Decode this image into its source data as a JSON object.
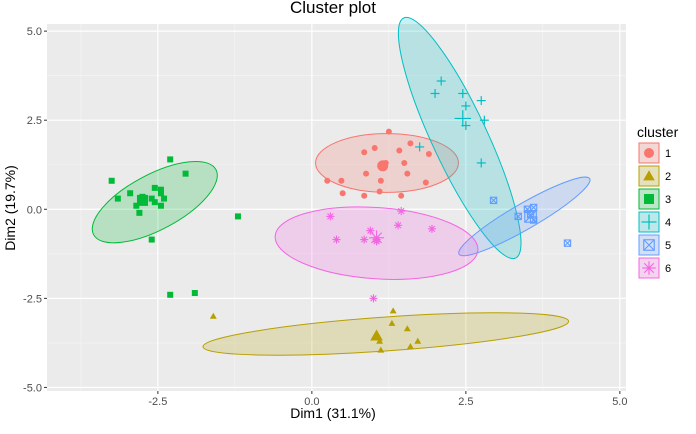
{
  "chart_data": {
    "type": "scatter",
    "title": "Cluster plot",
    "xlabel": "Dim1 (31.1%)",
    "ylabel": "Dim2 (19.7%)",
    "xlim": [
      -4.3,
      5.1
    ],
    "ylim": [
      -5.1,
      5.2
    ],
    "xticks": [
      -2.5,
      0.0,
      2.5,
      5.0
    ],
    "xtick_labels": [
      "-2.5",
      "0.0",
      "2.5",
      "5.0"
    ],
    "yticks": [
      -5.0,
      -2.5,
      0.0,
      2.5,
      5.0
    ],
    "ytick_labels": [
      "-5.0",
      "-2.5",
      "0.0",
      "2.5",
      "5.0"
    ],
    "grid": true,
    "legend": {
      "title": "cluster",
      "position": "right"
    },
    "series": [
      {
        "name": "1",
        "color": "#F8766D",
        "marker": "circle",
        "centroid": [
          1.15,
          1.22
        ],
        "ellipse": {
          "cx": 1.22,
          "cy": 1.3,
          "rx": 2.32,
          "ry": 1.65,
          "angle": 0
        },
        "points": [
          [
            1.25,
            2.18
          ],
          [
            1.6,
            1.85
          ],
          [
            1.02,
            1.72
          ],
          [
            1.42,
            1.65
          ],
          [
            0.85,
            1.6
          ],
          [
            1.9,
            1.55
          ],
          [
            1.5,
            1.3
          ],
          [
            1.2,
            1.3
          ],
          [
            0.88,
            1.0
          ],
          [
            1.55,
            1.0
          ],
          [
            0.25,
            0.8
          ],
          [
            0.48,
            0.8
          ],
          [
            1.12,
            0.8
          ],
          [
            1.85,
            0.75
          ],
          [
            1.1,
            0.5
          ],
          [
            0.5,
            0.45
          ],
          [
            0.85,
            0.38
          ],
          [
            1.45,
            0.38
          ]
        ]
      },
      {
        "name": "2",
        "color": "#B79F00",
        "marker": "triangle",
        "centroid": [
          1.05,
          -3.55
        ],
        "ellipse": {
          "cx": 1.2,
          "cy": -3.5,
          "rx": 5.95,
          "ry": 0.95,
          "angle": -4
        },
        "points": [
          [
            -1.6,
            -3.0
          ],
          [
            1.32,
            -2.85
          ],
          [
            1.55,
            -3.35
          ],
          [
            1.6,
            -3.85
          ],
          [
            1.72,
            -3.7
          ],
          [
            1.1,
            -3.7
          ],
          [
            1.12,
            -3.95
          ],
          [
            1.3,
            -3.2
          ]
        ]
      },
      {
        "name": "3",
        "color": "#00BA38",
        "marker": "square",
        "centroid": [
          -2.75,
          0.25
        ],
        "ellipse": {
          "cx": -2.55,
          "cy": 0.2,
          "rx": 2.25,
          "ry": 1.55,
          "angle": -28
        },
        "points": [
          [
            -3.25,
            0.8
          ],
          [
            -2.95,
            0.45
          ],
          [
            -3.15,
            0.3
          ],
          [
            -2.55,
            0.6
          ],
          [
            -2.45,
            0.55
          ],
          [
            -2.3,
            1.4
          ],
          [
            -2.45,
            0.45
          ],
          [
            -2.4,
            0.3
          ],
          [
            -2.6,
            0.3
          ],
          [
            -2.55,
            0.2
          ],
          [
            -2.75,
            0.35
          ],
          [
            -2.85,
            0.1
          ],
          [
            -2.8,
            -0.1
          ],
          [
            -2.45,
            0.1
          ],
          [
            -2.05,
            1.0
          ],
          [
            -2.6,
            -0.85
          ],
          [
            -1.2,
            -0.2
          ],
          [
            -2.3,
            -2.4
          ],
          [
            -1.9,
            -2.35
          ]
        ]
      },
      {
        "name": "4",
        "color": "#00BFC4",
        "marker": "plus",
        "centroid": [
          2.45,
          2.55
        ],
        "ellipse": {
          "cx": 2.4,
          "cy": 2.0,
          "rx": 4.3,
          "ry": 1.55,
          "angle": 65
        },
        "points": [
          [
            2.1,
            3.6
          ],
          [
            2.45,
            3.25
          ],
          [
            2.0,
            3.25
          ],
          [
            2.75,
            3.05
          ],
          [
            2.5,
            2.9
          ],
          [
            2.5,
            2.35
          ],
          [
            2.8,
            2.5
          ],
          [
            1.75,
            1.75
          ],
          [
            2.75,
            1.3
          ]
        ]
      },
      {
        "name": "5",
        "color": "#619CFF",
        "marker": "boxx",
        "centroid": [
          3.55,
          -0.2
        ],
        "ellipse": {
          "cx": 3.45,
          "cy": -0.2,
          "rx": 2.45,
          "ry": 0.72,
          "angle": -30
        },
        "points": [
          [
            2.95,
            0.25
          ],
          [
            3.35,
            -0.2
          ],
          [
            3.5,
            0.0
          ],
          [
            3.55,
            -0.15
          ],
          [
            3.6,
            -0.3
          ],
          [
            3.6,
            0.05
          ],
          [
            4.15,
            -0.95
          ]
        ]
      },
      {
        "name": "6",
        "color": "#F564E3",
        "marker": "asterisk",
        "centroid": [
          1.05,
          -0.8
        ],
        "ellipse": {
          "cx": 1.05,
          "cy": -0.95,
          "rx": 3.3,
          "ry": 2.0,
          "angle": 4
        },
        "points": [
          [
            0.3,
            -0.2
          ],
          [
            1.45,
            -0.05
          ],
          [
            0.95,
            -0.6
          ],
          [
            1.4,
            -0.45
          ],
          [
            1.95,
            -0.55
          ],
          [
            0.4,
            -0.85
          ],
          [
            0.85,
            -0.85
          ],
          [
            1.05,
            -0.85
          ],
          [
            1.05,
            -0.9
          ],
          [
            1.0,
            -2.5
          ]
        ]
      }
    ]
  }
}
